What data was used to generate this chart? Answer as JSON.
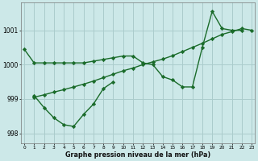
{
  "xlabel": "Graphe pression niveau de la mer (hPa)",
  "bg_color": "#cce8e8",
  "grid_color": "#aacccc",
  "line_color": "#1a6b2a",
  "marker": "D",
  "markersize": 2.2,
  "linewidth": 1.0,
  "ylim": [
    997.7,
    1001.8
  ],
  "xlim": [
    -0.3,
    23.3
  ],
  "yticks": [
    998,
    999,
    1000,
    1001
  ],
  "xticks": [
    0,
    1,
    2,
    3,
    4,
    5,
    6,
    7,
    8,
    9,
    10,
    11,
    12,
    13,
    14,
    15,
    16,
    17,
    18,
    19,
    20,
    21,
    22,
    23
  ],
  "series1_x": [
    0,
    1,
    2,
    3,
    4,
    5,
    6,
    7,
    8,
    9,
    10,
    11,
    12,
    13,
    14,
    15,
    16,
    17,
    18,
    19,
    20,
    21,
    22
  ],
  "series1_y": [
    1000.45,
    1000.05,
    1000.05,
    1000.05,
    1000.05,
    1000.05,
    1000.05,
    1000.1,
    1000.15,
    1000.2,
    1000.25,
    1000.25,
    1000.05,
    1000.0,
    999.65,
    999.55,
    999.35,
    999.35,
    1000.5,
    1001.55,
    1001.05,
    1001.0,
    1001.0
  ],
  "series2_x": [
    1,
    2,
    3,
    4,
    5,
    6,
    7,
    8,
    9
  ],
  "series2_y": [
    999.1,
    998.75,
    998.45,
    998.25,
    998.2,
    998.55,
    998.85,
    999.3,
    999.5
  ],
  "series3_x": [
    1,
    2,
    3,
    4,
    5,
    6,
    7,
    8,
    9,
    10,
    11,
    12,
    13,
    14,
    15,
    16,
    17,
    18,
    19,
    20,
    21,
    22,
    23
  ],
  "series3_y": [
    999.05,
    999.12,
    999.2,
    999.27,
    999.35,
    999.43,
    999.52,
    999.62,
    999.72,
    999.82,
    999.9,
    1000.0,
    1000.08,
    1000.16,
    1000.26,
    1000.38,
    1000.5,
    1000.62,
    1000.75,
    1000.88,
    1000.96,
    1001.05,
    1001.0
  ]
}
